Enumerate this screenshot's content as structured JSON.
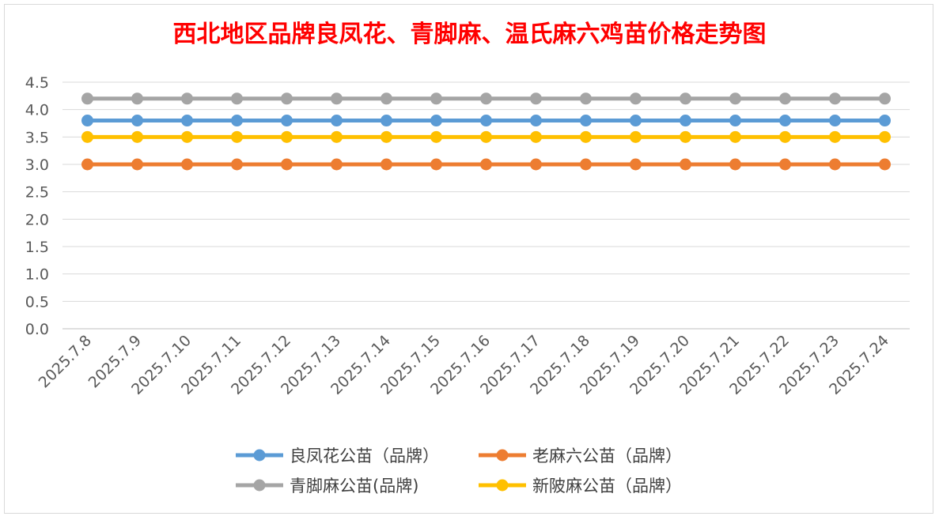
{
  "chart_data": {
    "type": "line",
    "title": "西北地区品牌良凤花、青脚麻、温氏麻六鸡苗价格走势图",
    "x": [
      "2025.7.8",
      "2025.7.9",
      "2025.7.10",
      "2025.7.11",
      "2025.7.12",
      "2025.7.13",
      "2025.7.14",
      "2025.7.15",
      "2025.7.16",
      "2025.7.17",
      "2025.7.18",
      "2025.7.19",
      "2025.7.20",
      "2025.7.21",
      "2025.7.22",
      "2025.7.23",
      "2025.7.24"
    ],
    "yticks": [
      "0.0",
      "0.5",
      "1.0",
      "1.5",
      "2.0",
      "2.5",
      "3.0",
      "3.5",
      "4.0",
      "4.5"
    ],
    "ylim": [
      0,
      4.5
    ],
    "grid": true,
    "legend_position": "bottom",
    "series": [
      {
        "name": "良凤花公苗（品牌）",
        "color": "#5b9bd5",
        "values": [
          3.8,
          3.8,
          3.8,
          3.8,
          3.8,
          3.8,
          3.8,
          3.8,
          3.8,
          3.8,
          3.8,
          3.8,
          3.8,
          3.8,
          3.8,
          3.8,
          3.8
        ]
      },
      {
        "name": "老麻六公苗（品牌）",
        "color": "#ed7d31",
        "values": [
          3.0,
          3.0,
          3.0,
          3.0,
          3.0,
          3.0,
          3.0,
          3.0,
          3.0,
          3.0,
          3.0,
          3.0,
          3.0,
          3.0,
          3.0,
          3.0,
          3.0
        ]
      },
      {
        "name": "青脚麻公苗(品牌)",
        "color": "#a5a5a5",
        "values": [
          4.2,
          4.2,
          4.2,
          4.2,
          4.2,
          4.2,
          4.2,
          4.2,
          4.2,
          4.2,
          4.2,
          4.2,
          4.2,
          4.2,
          4.2,
          4.2,
          4.2
        ]
      },
      {
        "name": "新陂麻公苗（品牌）",
        "color": "#ffc000",
        "values": [
          3.5,
          3.5,
          3.5,
          3.5,
          3.5,
          3.5,
          3.5,
          3.5,
          3.5,
          3.5,
          3.5,
          3.5,
          3.5,
          3.5,
          3.5,
          3.5,
          3.5
        ]
      }
    ]
  }
}
